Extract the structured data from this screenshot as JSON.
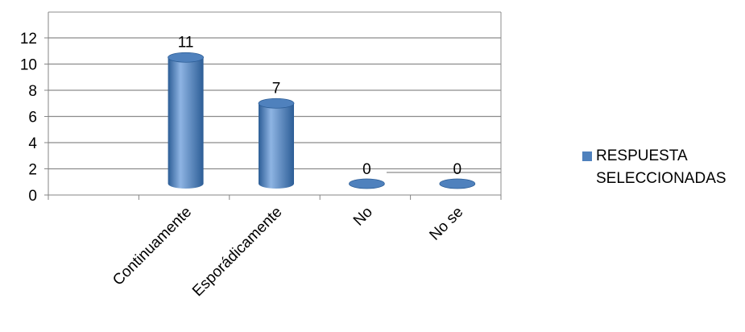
{
  "chart_data": {
    "type": "bar",
    "categories": [
      "Continuamente",
      "Esporádicamente",
      "No",
      "No se"
    ],
    "series": [
      {
        "name": "RESPUESTA SELECCIONADAS",
        "values": [
          11,
          7,
          0,
          0
        ]
      }
    ],
    "data_labels": [
      "11",
      "7",
      "0",
      "0"
    ],
    "ylim": [
      0,
      12
    ],
    "yticks": [
      0,
      2,
      4,
      6,
      8,
      10,
      12
    ],
    "grid": true,
    "legend_position": "right",
    "bar_style": "3d-cylinder",
    "colors": {
      "bar": "#4f81bd",
      "bar_dark": "#2c5d96",
      "bar_light": "#8eb4e3",
      "grid": "#8c8c8c",
      "axis": "#868686"
    }
  }
}
